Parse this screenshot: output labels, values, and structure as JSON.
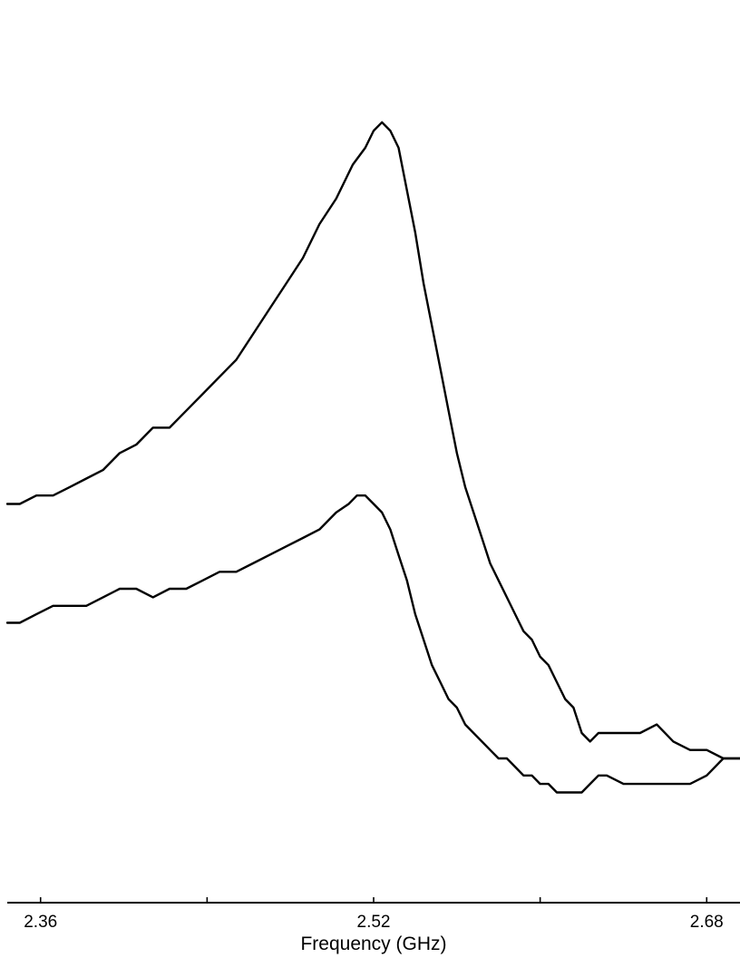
{
  "chart_data": {
    "type": "line",
    "title": "",
    "xlabel": "Frequency (GHz)",
    "ylabel": "",
    "xlim": [
      2.344,
      2.696
    ],
    "ylim": [
      0,
      1.0
    ],
    "grid": false,
    "legend": "none",
    "x_ticks": [
      {
        "value": 2.36,
        "label": "2.36"
      },
      {
        "value": 2.44,
        "label": ""
      },
      {
        "value": 2.52,
        "label": "2.52"
      },
      {
        "value": 2.6,
        "label": ""
      },
      {
        "value": 2.68,
        "label": "2.68"
      }
    ],
    "series": [
      {
        "color": "#000000",
        "points": [
          [
            2.344,
            0.47
          ],
          [
            2.35,
            0.47
          ],
          [
            2.358,
            0.48
          ],
          [
            2.366,
            0.48
          ],
          [
            2.374,
            0.49
          ],
          [
            2.382,
            0.5
          ],
          [
            2.39,
            0.51
          ],
          [
            2.398,
            0.53
          ],
          [
            2.406,
            0.54
          ],
          [
            2.414,
            0.56
          ],
          [
            2.422,
            0.56
          ],
          [
            2.43,
            0.58
          ],
          [
            2.438,
            0.6
          ],
          [
            2.446,
            0.62
          ],
          [
            2.454,
            0.64
          ],
          [
            2.462,
            0.67
          ],
          [
            2.47,
            0.7
          ],
          [
            2.478,
            0.73
          ],
          [
            2.486,
            0.76
          ],
          [
            2.494,
            0.8
          ],
          [
            2.502,
            0.83
          ],
          [
            2.51,
            0.87
          ],
          [
            2.516,
            0.89
          ],
          [
            2.52,
            0.91
          ],
          [
            2.524,
            0.92
          ],
          [
            2.528,
            0.91
          ],
          [
            2.532,
            0.89
          ],
          [
            2.536,
            0.84
          ],
          [
            2.54,
            0.79
          ],
          [
            2.544,
            0.73
          ],
          [
            2.548,
            0.68
          ],
          [
            2.552,
            0.63
          ],
          [
            2.556,
            0.58
          ],
          [
            2.56,
            0.53
          ],
          [
            2.564,
            0.49
          ],
          [
            2.568,
            0.46
          ],
          [
            2.572,
            0.43
          ],
          [
            2.576,
            0.4
          ],
          [
            2.58,
            0.38
          ],
          [
            2.584,
            0.36
          ],
          [
            2.588,
            0.34
          ],
          [
            2.592,
            0.32
          ],
          [
            2.596,
            0.31
          ],
          [
            2.6,
            0.29
          ],
          [
            2.604,
            0.28
          ],
          [
            2.608,
            0.26
          ],
          [
            2.612,
            0.24
          ],
          [
            2.616,
            0.23
          ],
          [
            2.62,
            0.2
          ],
          [
            2.624,
            0.19
          ],
          [
            2.628,
            0.2
          ],
          [
            2.632,
            0.2
          ],
          [
            2.636,
            0.2
          ],
          [
            2.64,
            0.2
          ],
          [
            2.648,
            0.2
          ],
          [
            2.656,
            0.21
          ],
          [
            2.664,
            0.19
          ],
          [
            2.672,
            0.18
          ],
          [
            2.68,
            0.18
          ],
          [
            2.688,
            0.17
          ],
          [
            2.696,
            0.17
          ]
        ]
      },
      {
        "color": "#000000",
        "points": [
          [
            2.344,
            0.33
          ],
          [
            2.35,
            0.33
          ],
          [
            2.358,
            0.34
          ],
          [
            2.366,
            0.35
          ],
          [
            2.374,
            0.35
          ],
          [
            2.382,
            0.35
          ],
          [
            2.39,
            0.36
          ],
          [
            2.398,
            0.37
          ],
          [
            2.406,
            0.37
          ],
          [
            2.414,
            0.36
          ],
          [
            2.422,
            0.37
          ],
          [
            2.43,
            0.37
          ],
          [
            2.438,
            0.38
          ],
          [
            2.446,
            0.39
          ],
          [
            2.454,
            0.39
          ],
          [
            2.462,
            0.4
          ],
          [
            2.47,
            0.41
          ],
          [
            2.478,
            0.42
          ],
          [
            2.486,
            0.43
          ],
          [
            2.494,
            0.44
          ],
          [
            2.502,
            0.46
          ],
          [
            2.508,
            0.47
          ],
          [
            2.512,
            0.48
          ],
          [
            2.516,
            0.48
          ],
          [
            2.52,
            0.47
          ],
          [
            2.524,
            0.46
          ],
          [
            2.528,
            0.44
          ],
          [
            2.532,
            0.41
          ],
          [
            2.536,
            0.38
          ],
          [
            2.54,
            0.34
          ],
          [
            2.544,
            0.31
          ],
          [
            2.548,
            0.28
          ],
          [
            2.552,
            0.26
          ],
          [
            2.556,
            0.24
          ],
          [
            2.56,
            0.23
          ],
          [
            2.564,
            0.21
          ],
          [
            2.568,
            0.2
          ],
          [
            2.572,
            0.19
          ],
          [
            2.576,
            0.18
          ],
          [
            2.58,
            0.17
          ],
          [
            2.584,
            0.17
          ],
          [
            2.588,
            0.16
          ],
          [
            2.592,
            0.15
          ],
          [
            2.596,
            0.15
          ],
          [
            2.6,
            0.14
          ],
          [
            2.604,
            0.14
          ],
          [
            2.608,
            0.13
          ],
          [
            2.612,
            0.13
          ],
          [
            2.616,
            0.13
          ],
          [
            2.62,
            0.13
          ],
          [
            2.624,
            0.14
          ],
          [
            2.628,
            0.15
          ],
          [
            2.632,
            0.15
          ],
          [
            2.64,
            0.14
          ],
          [
            2.648,
            0.14
          ],
          [
            2.656,
            0.14
          ],
          [
            2.664,
            0.14
          ],
          [
            2.672,
            0.14
          ],
          [
            2.68,
            0.15
          ],
          [
            2.688,
            0.17
          ],
          [
            2.696,
            0.17
          ]
        ]
      }
    ]
  }
}
